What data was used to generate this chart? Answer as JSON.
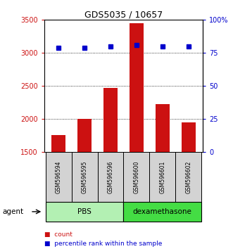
{
  "title": "GDS5035 / 10657",
  "samples": [
    "GSM596594",
    "GSM596595",
    "GSM596596",
    "GSM596600",
    "GSM596601",
    "GSM596602"
  ],
  "counts": [
    1750,
    2000,
    2470,
    3450,
    2220,
    1950
  ],
  "percentiles": [
    79,
    79,
    80,
    81,
    80,
    80
  ],
  "ylim_left": [
    1500,
    3500
  ],
  "ylim_right": [
    0,
    100
  ],
  "yticks_left": [
    1500,
    2000,
    2500,
    3000,
    3500
  ],
  "yticks_right": [
    0,
    25,
    50,
    75,
    100
  ],
  "ytick_labels_right": [
    "0",
    "25",
    "50",
    "75",
    "100%"
  ],
  "groups": [
    {
      "label": "PBS",
      "color": "#b3f0b3",
      "indices": [
        0,
        1,
        2
      ]
    },
    {
      "label": "dexamethasone",
      "color": "#44dd44",
      "indices": [
        3,
        4,
        5
      ]
    }
  ],
  "bar_color": "#cc1111",
  "marker_color": "#0000cc",
  "bar_bottom": 1500,
  "left_tick_color": "#cc1111",
  "right_tick_color": "#0000cc",
  "legend_items": [
    "count",
    "percentile rank within the sample"
  ],
  "legend_colors": [
    "#cc1111",
    "#0000cc"
  ],
  "agent_label": "agent",
  "sample_box_color": "#d3d3d3"
}
